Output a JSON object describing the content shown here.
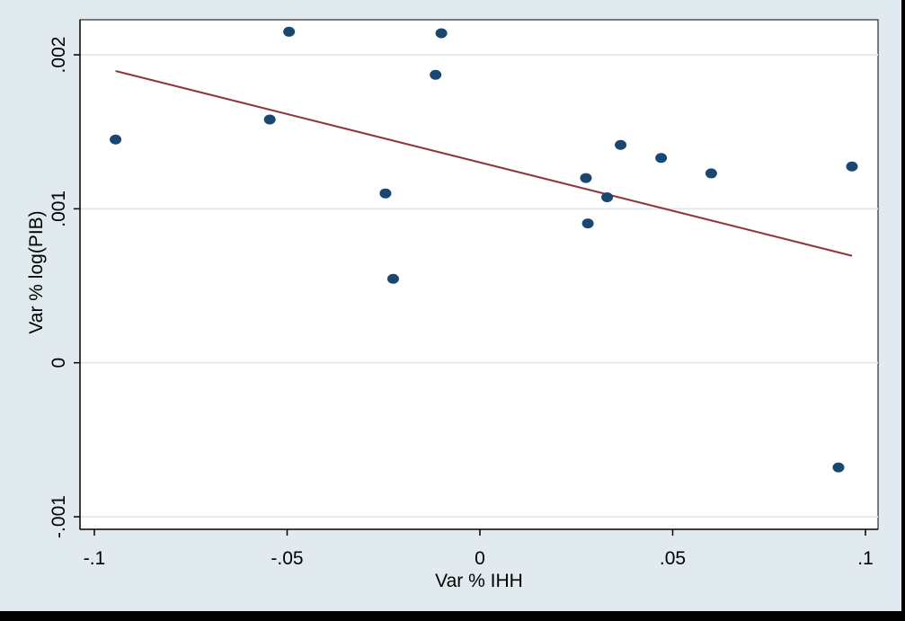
{
  "chart_data": {
    "type": "scatter",
    "title": "",
    "xlabel": "Var % IHH",
    "ylabel": "Var % log(PIB)",
    "xlim": [
      -0.1,
      0.1
    ],
    "ylim": [
      -0.001,
      0.002
    ],
    "x_ticks": [
      -0.1,
      -0.05,
      0,
      0.05,
      0.1
    ],
    "x_tick_labels": [
      "-.1",
      "-.05",
      "0",
      ".05",
      ".1"
    ],
    "y_ticks": [
      -0.001,
      0,
      0.001,
      0.002
    ],
    "y_tick_labels": [
      "-.001",
      "0",
      ".001",
      ".002"
    ],
    "grid": true,
    "series": [
      {
        "type": "scatter",
        "color": "#1a476f",
        "points": [
          {
            "x": -0.0945,
            "y": 0.00145
          },
          {
            "x": -0.0545,
            "y": 0.00158
          },
          {
            "x": -0.0495,
            "y": 0.00215
          },
          {
            "x": -0.0245,
            "y": 0.0011
          },
          {
            "x": -0.0225,
            "y": 0.000545
          },
          {
            "x": -0.0115,
            "y": 0.00187
          },
          {
            "x": -0.01,
            "y": 0.00214
          },
          {
            "x": 0.0275,
            "y": 0.0012
          },
          {
            "x": 0.028,
            "y": 0.000905
          },
          {
            "x": 0.033,
            "y": 0.001075
          },
          {
            "x": 0.0365,
            "y": 0.001415
          },
          {
            "x": 0.047,
            "y": 0.00133
          },
          {
            "x": 0.06,
            "y": 0.00123
          },
          {
            "x": 0.093,
            "y": -0.00068
          },
          {
            "x": 0.0965,
            "y": 0.001275
          }
        ]
      },
      {
        "type": "line",
        "color": "#90353b",
        "points": [
          {
            "x": -0.0945,
            "y": 0.001895
          },
          {
            "x": 0.0965,
            "y": 0.000695
          }
        ]
      }
    ]
  }
}
